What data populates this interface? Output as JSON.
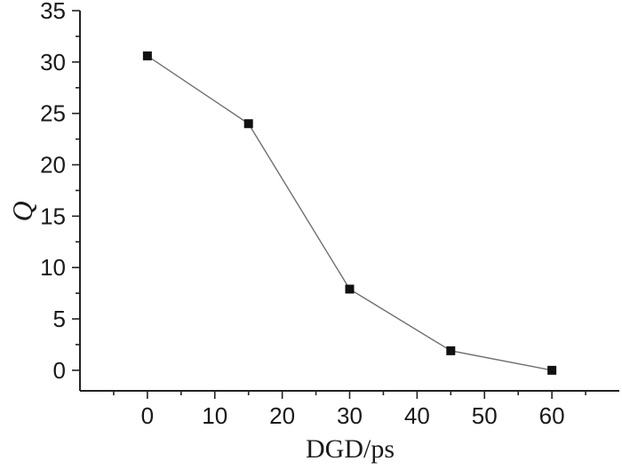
{
  "chart_data": {
    "type": "line",
    "title": "",
    "xlabel": "DGD/ps",
    "ylabel": "Q",
    "xlim": [
      -10,
      70
    ],
    "ylim": [
      -2,
      35
    ],
    "xticks": [
      0,
      10,
      20,
      30,
      40,
      50,
      60
    ],
    "yticks": [
      0,
      5,
      10,
      15,
      20,
      25,
      30,
      35
    ],
    "grid": false,
    "marker": "square",
    "series": [
      {
        "x": [
          0,
          15,
          30,
          45,
          60
        ],
        "y": [
          30.6,
          24.0,
          7.9,
          1.9,
          0.0
        ]
      }
    ]
  }
}
